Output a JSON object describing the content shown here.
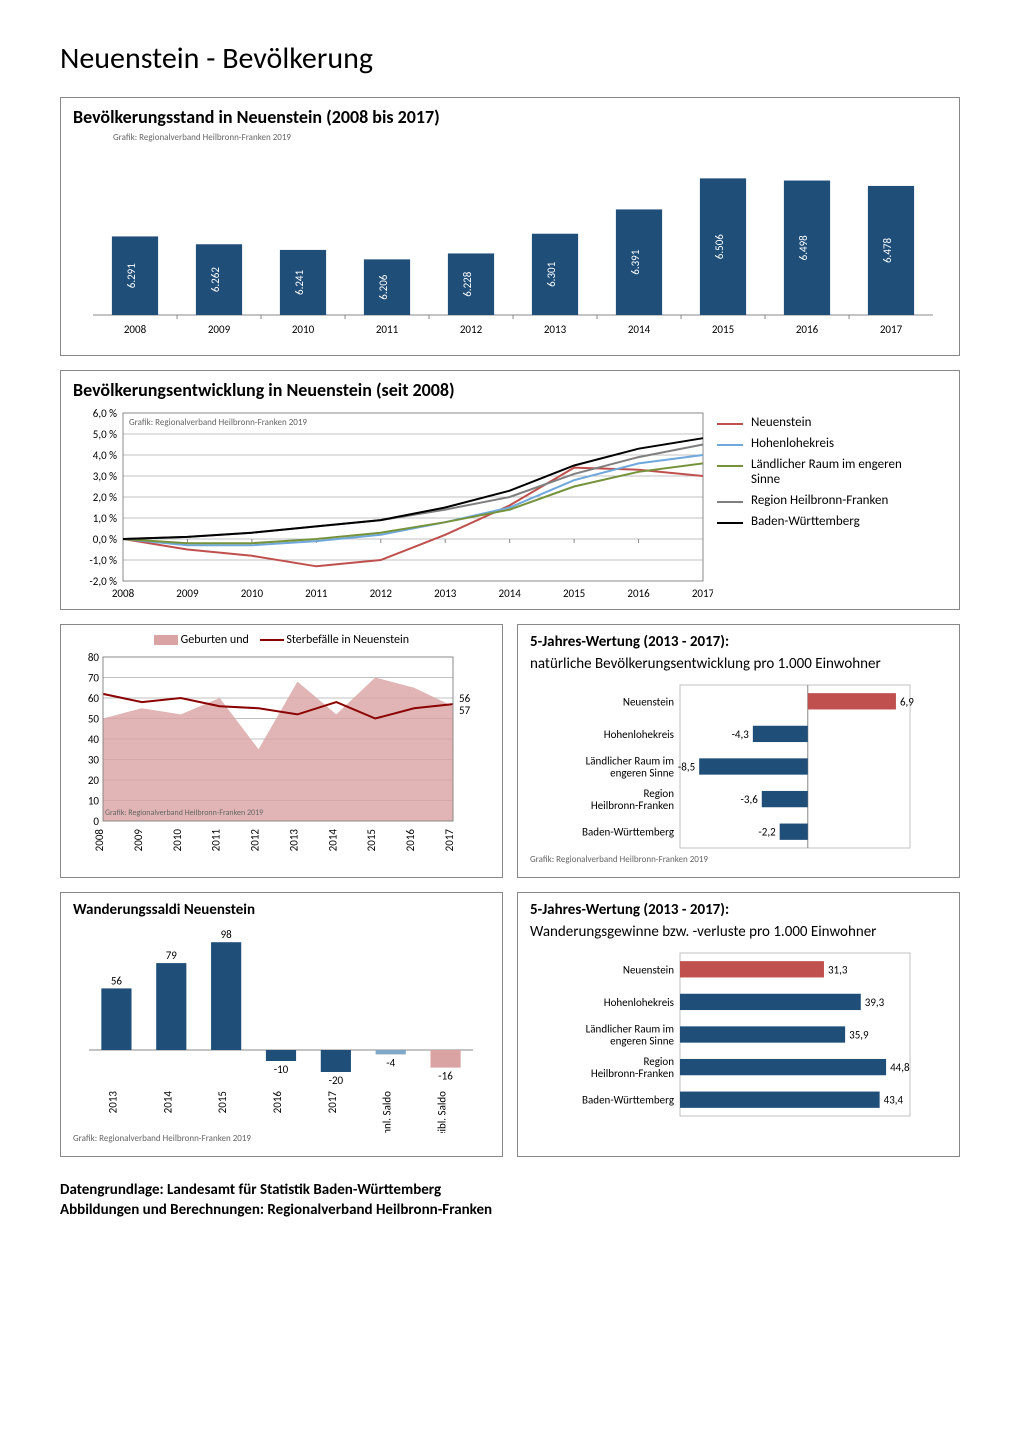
{
  "page_title": "Neuenstein - Bevölkerung",
  "credit_text": "Grafik: Regionalverband Heilbronn-Franken 2019",
  "footer_line1": "Datengrundlage: Landesamt für Statistik Baden-Württemberg",
  "footer_line2": "Abbildungen und Berechnungen: Regionalverband Heilbronn-Franken",
  "chart1": {
    "title": "Bevölkerungsstand in Neuenstein (2008 bis 2017)",
    "type": "bar",
    "years": [
      "2008",
      "2009",
      "2010",
      "2011",
      "2012",
      "2013",
      "2014",
      "2015",
      "2016",
      "2017"
    ],
    "values": [
      6291,
      6262,
      6241,
      6206,
      6228,
      6301,
      6391,
      6506,
      6498,
      6478
    ],
    "value_labels": [
      "6.291",
      "6.262",
      "6.241",
      "6.206",
      "6.228",
      "6.301",
      "6.391",
      "6.506",
      "6.498",
      "6.478"
    ],
    "bar_color": "#1f4e79",
    "ymin": 6000,
    "ymax": 6600,
    "background": "#ffffff"
  },
  "chart2": {
    "title": "Bevölkerungsentwicklung in Neuenstein (seit 2008)",
    "type": "line",
    "years": [
      "2008",
      "2009",
      "2010",
      "2011",
      "2012",
      "2013",
      "2014",
      "2015",
      "2016",
      "2017"
    ],
    "ymin": -2,
    "ymax": 6,
    "ytick_step": 1,
    "grid_color": "#c0c0c0",
    "series": [
      {
        "name": "Neuenstein",
        "color": "#c0504d",
        "width": 2,
        "values": [
          0,
          -0.5,
          -0.8,
          -1.3,
          -1.0,
          0.2,
          1.6,
          3.4,
          3.3,
          3.0
        ]
      },
      {
        "name": "Hohenlohekreis",
        "color": "#6fa8dc",
        "width": 2,
        "values": [
          0,
          -0.3,
          -0.3,
          -0.1,
          0.2,
          0.8,
          1.5,
          2.8,
          3.6,
          4.0
        ]
      },
      {
        "name": "Ländlicher Raum im engeren Sinne",
        "color": "#76933c",
        "width": 2,
        "values": [
          0,
          -0.2,
          -0.2,
          0.0,
          0.3,
          0.8,
          1.4,
          2.5,
          3.2,
          3.6
        ]
      },
      {
        "name": "Region Heilbronn-Franken",
        "color": "#7f7f7f",
        "width": 2,
        "values": [
          0,
          0.1,
          0.3,
          0.6,
          0.9,
          1.4,
          2.0,
          3.1,
          3.9,
          4.5
        ]
      },
      {
        "name": "Baden-Württemberg",
        "color": "#000000",
        "width": 2,
        "values": [
          0,
          0.1,
          0.3,
          0.6,
          0.9,
          1.5,
          2.3,
          3.5,
          4.3,
          4.8
        ]
      }
    ]
  },
  "chart3": {
    "legend_births": "Geburten und",
    "legend_deaths": "Sterbefälle in Neuenstein",
    "type": "area_line",
    "years": [
      "2008",
      "2009",
      "2010",
      "2011",
      "2012",
      "2013",
      "2014",
      "2015",
      "2016",
      "2017"
    ],
    "births": {
      "color": "#d9a3a3",
      "values": [
        50,
        55,
        52,
        60,
        35,
        68,
        52,
        70,
        65,
        56
      ],
      "end_label": "56"
    },
    "deaths": {
      "color": "#8b0000",
      "width": 2,
      "values": [
        62,
        58,
        60,
        56,
        55,
        52,
        58,
        50,
        55,
        57
      ],
      "end_label": "57"
    },
    "ymin": 0,
    "ymax": 80,
    "ytick_step": 10,
    "grid_color": "#c0c0c0"
  },
  "chart4": {
    "title": "5-Jahres-Wertung (2013 - 2017):",
    "subtitle": "natürliche Bevölkerungsentwicklung pro 1.000 Einwohner",
    "type": "hbar",
    "categories": [
      "Neuenstein",
      "Hohenlohekreis",
      "Ländlicher Raum im engeren Sinne",
      "Region Heilbronn-Franken",
      "Baden-Württemberg"
    ],
    "values": [
      6.9,
      -4.3,
      -8.5,
      -3.6,
      -2.2
    ],
    "labels": [
      "6,9",
      "-4,3",
      "-8,5",
      "-3,6",
      "-2,2"
    ],
    "colors": [
      "#c0504d",
      "#1f4e79",
      "#1f4e79",
      "#1f4e79",
      "#1f4e79"
    ],
    "xmin": -10,
    "xmax": 8,
    "grid_color": "#c0c0c0"
  },
  "chart5": {
    "title": "Wanderungssaldi Neuenstein",
    "type": "bar",
    "categories": [
      "2013",
      "2014",
      "2015",
      "2016",
      "2017",
      "männl. Saldo",
      "weibl. Saldo"
    ],
    "values": [
      56,
      79,
      98,
      -10,
      -20,
      -4,
      -16
    ],
    "colors": [
      "#1f4e79",
      "#1f4e79",
      "#1f4e79",
      "#1f4e79",
      "#1f4e79",
      "#7fa8c9",
      "#d9a3a3"
    ],
    "ymin": -30,
    "ymax": 110,
    "grid_color": "#c0c0c0"
  },
  "chart6": {
    "title": "5-Jahres-Wertung (2013 - 2017):",
    "subtitle": "Wanderungsgewinne bzw. -verluste pro 1.000 Einwohner",
    "type": "hbar",
    "categories": [
      "Neuenstein",
      "Hohenlohekreis",
      "Ländlicher Raum im engeren Sinne",
      "Region Heilbronn-Franken",
      "Baden-Württemberg"
    ],
    "values": [
      31.3,
      39.3,
      35.9,
      44.8,
      43.4
    ],
    "labels": [
      "31,3",
      "39,3",
      "35,9",
      "44,8",
      "43,4"
    ],
    "colors": [
      "#c0504d",
      "#1f4e79",
      "#1f4e79",
      "#1f4e79",
      "#1f4e79"
    ],
    "xmin": 0,
    "xmax": 50,
    "grid_color": "#c0c0c0"
  }
}
